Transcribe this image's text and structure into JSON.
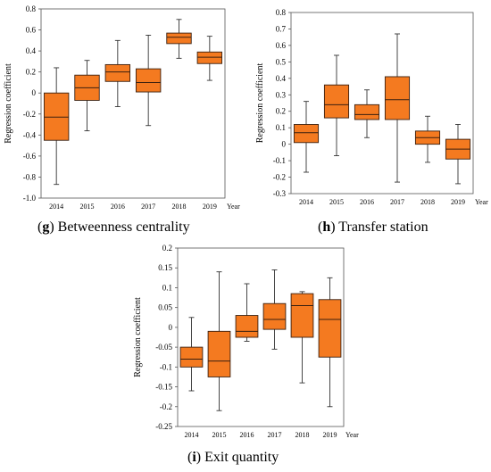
{
  "chart_data": [
    {
      "type": "box",
      "panel": "g",
      "caption_letter": "g",
      "caption_text": "Betweenness centrality",
      "ylabel": "Regression coefficient",
      "xlabel": "Year",
      "ylim": [
        -1.0,
        0.8
      ],
      "yticks": [
        "-1.0",
        "-0.8",
        "-0.6",
        "-0.4",
        "-0.2",
        "0",
        "0.2",
        "0.4",
        "0.6",
        "0.8"
      ],
      "ytick_values": [
        -1.0,
        -0.8,
        -0.6,
        -0.4,
        -0.2,
        0,
        0.2,
        0.4,
        0.6,
        0.8
      ],
      "categories": [
        "2014",
        "2015",
        "2016",
        "2017",
        "2018",
        "2019"
      ],
      "boxes": [
        {
          "min": -0.87,
          "q1": -0.45,
          "median": -0.23,
          "q3": 0.0,
          "max": 0.24
        },
        {
          "min": -0.36,
          "q1": -0.07,
          "median": 0.05,
          "q3": 0.17,
          "max": 0.31
        },
        {
          "min": -0.13,
          "q1": 0.11,
          "median": 0.2,
          "q3": 0.27,
          "max": 0.5
        },
        {
          "min": -0.31,
          "q1": 0.01,
          "median": 0.1,
          "q3": 0.23,
          "max": 0.55
        },
        {
          "min": 0.33,
          "q1": 0.47,
          "median": 0.53,
          "q3": 0.57,
          "max": 0.7
        },
        {
          "min": 0.12,
          "q1": 0.28,
          "median": 0.34,
          "q3": 0.39,
          "max": 0.54
        }
      ],
      "box_color": "#f47a20",
      "box_edge_color": "#3a2010",
      "grid": false
    },
    {
      "type": "box",
      "panel": "h",
      "caption_letter": "h",
      "caption_text": "Transfer station",
      "ylabel": "Regression coefficient",
      "xlabel": "Year",
      "ylim": [
        -0.3,
        0.8
      ],
      "yticks": [
        "-0.3",
        "-0.2",
        "-0.1",
        "0",
        "0.1",
        "0.2",
        "0.3",
        "0.4",
        "0.5",
        "0.6",
        "0.7",
        "0.8"
      ],
      "ytick_values": [
        -0.3,
        -0.2,
        -0.1,
        0,
        0.1,
        0.2,
        0.3,
        0.4,
        0.5,
        0.6,
        0.7,
        0.8
      ],
      "categories": [
        "2014",
        "2015",
        "2016",
        "2017",
        "2018",
        "2019"
      ],
      "boxes": [
        {
          "min": -0.17,
          "q1": 0.01,
          "median": 0.07,
          "q3": 0.12,
          "max": 0.26
        },
        {
          "min": -0.07,
          "q1": 0.16,
          "median": 0.24,
          "q3": 0.36,
          "max": 0.54
        },
        {
          "min": 0.04,
          "q1": 0.15,
          "median": 0.18,
          "q3": 0.24,
          "max": 0.33
        },
        {
          "min": -0.23,
          "q1": 0.15,
          "median": 0.27,
          "q3": 0.41,
          "max": 0.67
        },
        {
          "min": -0.11,
          "q1": 0.0,
          "median": 0.04,
          "q3": 0.08,
          "max": 0.17
        },
        {
          "min": -0.24,
          "q1": -0.09,
          "median": -0.03,
          "q3": 0.03,
          "max": 0.12
        }
      ],
      "box_color": "#f47a20",
      "box_edge_color": "#3a2010",
      "grid": false
    },
    {
      "type": "box",
      "panel": "i",
      "caption_letter": "i",
      "caption_text": "Exit quantity",
      "ylabel": "Regression coefficient",
      "xlabel": "Year",
      "ylim": [
        -0.25,
        0.2
      ],
      "yticks": [
        "-0.25",
        "-0.2",
        "-0.15",
        "-0.1",
        "-0.05",
        "0",
        "0.05",
        "0.1",
        "0.15",
        "0.2"
      ],
      "ytick_values": [
        -0.25,
        -0.2,
        -0.15,
        -0.1,
        -0.05,
        0,
        0.05,
        0.1,
        0.15,
        0.2
      ],
      "categories": [
        "2014",
        "2015",
        "2016",
        "2017",
        "2018",
        "2019"
      ],
      "boxes": [
        {
          "min": -0.16,
          "q1": -0.1,
          "median": -0.08,
          "q3": -0.05,
          "max": 0.025
        },
        {
          "min": -0.21,
          "q1": -0.125,
          "median": -0.085,
          "q3": -0.01,
          "max": 0.14
        },
        {
          "min": -0.035,
          "q1": -0.025,
          "median": -0.01,
          "q3": 0.03,
          "max": 0.11
        },
        {
          "min": -0.055,
          "q1": -0.005,
          "median": 0.02,
          "q3": 0.06,
          "max": 0.145
        },
        {
          "min": -0.14,
          "q1": -0.025,
          "median": 0.055,
          "q3": 0.085,
          "max": 0.09
        },
        {
          "min": -0.2,
          "q1": -0.075,
          "median": 0.02,
          "q3": 0.07,
          "max": 0.125
        }
      ],
      "box_color": "#f47a20",
      "box_edge_color": "#3a2010",
      "grid": false
    }
  ]
}
